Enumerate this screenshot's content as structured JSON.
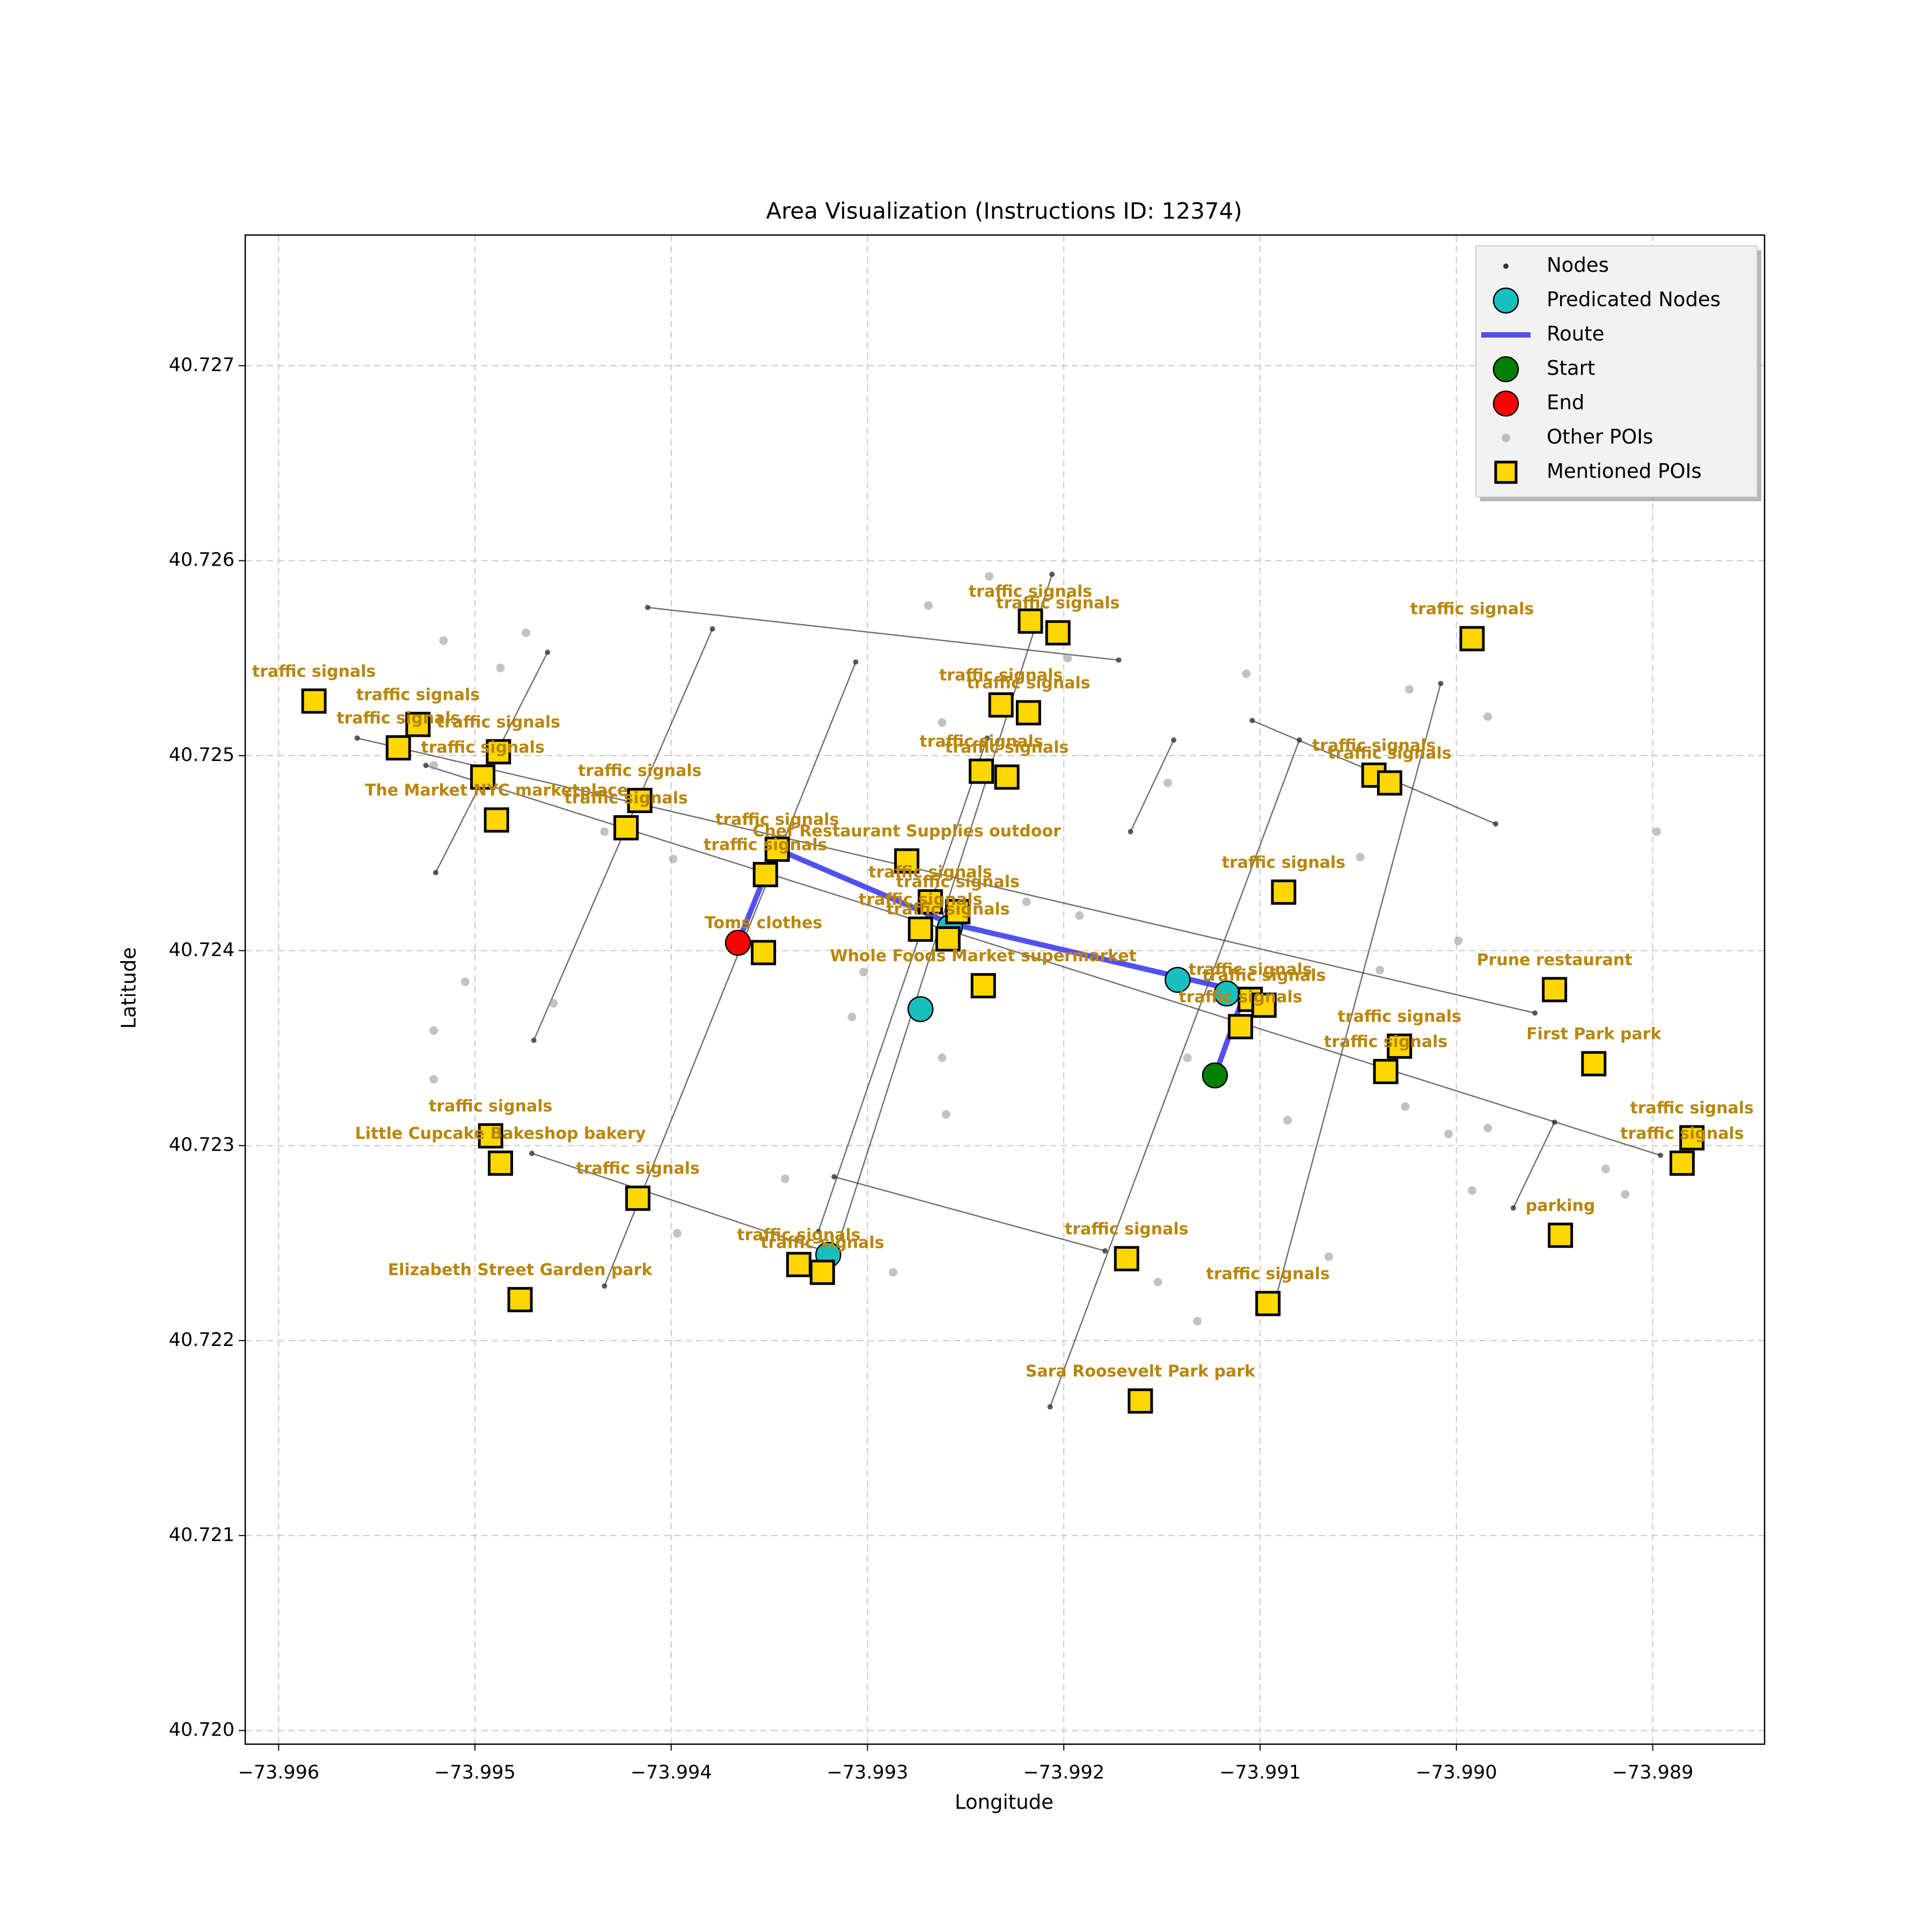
{
  "chart_data": {
    "type": "scatter",
    "title": "Area Visualization (Instructions ID: 12374)",
    "xlabel": "Longitude",
    "ylabel": "Latitude",
    "xlim": [
      -73.99617,
      -73.98843
    ],
    "ylim": [
      40.71993,
      40.72767
    ],
    "xticks": [
      {
        "value": -73.996,
        "label": "−73.996"
      },
      {
        "value": -73.995,
        "label": "−73.995"
      },
      {
        "value": -73.994,
        "label": "−73.994"
      },
      {
        "value": -73.993,
        "label": "−73.993"
      },
      {
        "value": -73.992,
        "label": "−73.992"
      },
      {
        "value": -73.991,
        "label": "−73.991"
      },
      {
        "value": -73.99,
        "label": "−73.990"
      },
      {
        "value": -73.989,
        "label": "−73.989"
      }
    ],
    "yticks": [
      {
        "value": 40.72,
        "label": "40.720"
      },
      40.721,
      40.722,
      40.723,
      40.724,
      40.725,
      40.726,
      40.727
    ],
    "grid": true,
    "legend": "upper right",
    "series": [
      {
        "name": "Nodes",
        "color": "#333333",
        "marker": "dot-line",
        "x": [
          -73.99412,
          -73.99172,
          null,
          -73.9956,
          -73.9896,
          null,
          -73.99525,
          -73.98896,
          null,
          -73.99104,
          -73.9898,
          null,
          -73.99471,
          -73.99322,
          null,
          -73.99317,
          -73.99179,
          null,
          -73.9952,
          -73.99463,
          null,
          -73.9947,
          -73.99379,
          null,
          -73.99434,
          -73.99306,
          null,
          -73.99325,
          -73.99239,
          null,
          -73.99317,
          -73.99206,
          null,
          -73.99207,
          -73.9908,
          null,
          -73.99093,
          -73.99008,
          null,
          -73.98971,
          -73.9895,
          null,
          -73.99166,
          -73.99144
        ],
        "y": [
          40.72576,
          40.72549,
          null,
          40.72509,
          40.72368,
          null,
          40.72495,
          40.72295,
          null,
          40.72518,
          40.72465,
          null,
          40.72296,
          40.72246,
          null,
          40.72284,
          40.72246,
          null,
          40.7244,
          40.72553,
          null,
          40.72354,
          40.72565,
          null,
          40.72228,
          40.72548,
          null,
          40.72256,
          40.72509,
          null,
          40.72243,
          40.72593,
          null,
          40.72166,
          40.72508,
          null,
          40.72218,
          40.72537,
          null,
          40.72268,
          40.72312,
          null,
          40.72461,
          40.72508
        ]
      },
      {
        "name": "Predicated Nodes",
        "color": "#17bfbf",
        "marker": "circle",
        "x": [
          -73.99142,
          -73.99117,
          -73.99273,
          -73.9932,
          -73.99258
        ],
        "y": [
          40.72385,
          40.72378,
          40.7237,
          40.72244,
          40.72412
        ]
      },
      {
        "name": "Route",
        "color": "#3333ee",
        "marker": "line",
        "x": [
          -73.99366,
          -73.99352,
          -73.99346,
          -73.99258,
          -73.99118,
          -73.99109,
          -73.99123
        ],
        "y": [
          40.72404,
          40.72439,
          40.72452,
          40.72414,
          40.72381,
          40.72375,
          40.72336
        ]
      },
      {
        "name": "Start",
        "color": "#008000",
        "marker": "circle",
        "x": [
          -73.99123
        ],
        "y": [
          40.72336
        ]
      },
      {
        "name": "End",
        "color": "#ff0000",
        "marker": "circle",
        "x": [
          -73.99366
        ],
        "y": [
          40.72404
        ]
      },
      {
        "name": "Other POIs",
        "color": "#999999",
        "marker": "gray-dot",
        "x": [
          -73.99516,
          -73.99474,
          -73.99487,
          -73.99521,
          -73.99434,
          -73.99399,
          -73.99505,
          -73.99521,
          -73.99521,
          -73.9946,
          -73.99269,
          -73.99238,
          -73.99198,
          -73.99262,
          -73.99219,
          -73.99192,
          -73.99302,
          -73.99308,
          -73.99262,
          -73.9926,
          -73.99147,
          -73.99107,
          -73.99024,
          -73.98984,
          -73.99049,
          -73.99039,
          -73.98999,
          -73.98898,
          -73.99086,
          -73.99026,
          -73.99004,
          -73.98984,
          -73.98924,
          -73.98914,
          -73.98992,
          -73.99065,
          -73.99152,
          -73.99132,
          -73.99342,
          -73.99397,
          -73.99287,
          -73.99137
        ],
        "y": [
          40.72559,
          40.72563,
          40.72545,
          40.72495,
          40.72461,
          40.72447,
          40.72384,
          40.72359,
          40.72334,
          40.72373,
          40.72577,
          40.72592,
          40.7255,
          40.72517,
          40.72425,
          40.72418,
          40.72389,
          40.72366,
          40.72345,
          40.72316,
          40.72486,
          40.72542,
          40.72534,
          40.7252,
          40.72448,
          40.7239,
          40.72405,
          40.72461,
          40.72313,
          40.7232,
          40.72306,
          40.72309,
          40.72288,
          40.72275,
          40.72277,
          40.72243,
          40.7223,
          40.7221,
          40.72283,
          40.72255,
          40.72235,
          40.72345
        ]
      },
      {
        "name": "Mentioned POIs",
        "color": "#ffd700",
        "marker": "square",
        "x": [
          -73.99582,
          -73.99529,
          -73.99539,
          -73.99488,
          -73.99496,
          -73.99489,
          -73.99416,
          -73.99423,
          -73.99346,
          -73.99352,
          -73.9928,
          -73.99353,
          -73.99217,
          -73.99203,
          -73.99232,
          -73.99218,
          -73.99242,
          -73.99229,
          -73.99268,
          -73.99254,
          -73.99273,
          -73.99259,
          -73.99241,
          -73.98992,
          -73.99042,
          -73.99034,
          -73.99088,
          -73.9895,
          -73.99105,
          -73.99098,
          -73.9911,
          -73.99029,
          -73.99036,
          -73.9893,
          -73.9888,
          -73.98885,
          -73.98947,
          -73.99492,
          -73.99487,
          -73.99417,
          -73.99335,
          -73.99323,
          -73.99477,
          -73.99168,
          -73.99096,
          -73.99161
        ],
        "y": [
          40.72528,
          40.72516,
          40.72504,
          40.72502,
          40.72489,
          40.72467,
          40.72477,
          40.72463,
          40.72452,
          40.72439,
          40.72446,
          40.72399,
          40.72569,
          40.72563,
          40.72526,
          40.72522,
          40.72492,
          40.72489,
          40.72425,
          40.7242,
          40.72411,
          40.72406,
          40.72382,
          40.7256,
          40.7249,
          40.72486,
          40.7243,
          40.7238,
          40.72375,
          40.72372,
          40.72361,
          40.72351,
          40.72338,
          40.72342,
          40.72304,
          40.72291,
          40.72254,
          40.72305,
          40.72291,
          40.72273,
          40.72239,
          40.72235,
          40.72221,
          40.72242,
          40.72219,
          40.72169
        ],
        "labels": [
          "traffic signals",
          "traffic signals",
          "traffic signals",
          "traffic signals",
          "traffic signals",
          "The Market NYC    marketplace",
          "traffic signals",
          "traffic signals",
          "traffic signals",
          "traffic signals",
          "Chef Restaurant Supplies    outdoor",
          "Toms    clothes",
          "traffic signals",
          "traffic signals",
          "traffic signals",
          "traffic signals",
          "traffic signals",
          "traffic signals",
          "traffic signals",
          "traffic signals",
          "traffic signals",
          "traffic signals",
          "Whole Foods Market    supermarket",
          "traffic signals",
          "traffic signals",
          "traffic signals",
          "traffic signals",
          "Prune restaurant",
          "traffic signals",
          "traffic signals",
          "traffic signals",
          "traffic signals",
          "traffic signals",
          "First Park    park",
          "traffic signals",
          "traffic signals",
          "parking",
          "traffic signals",
          "Little Cupcake Bakeshop    bakery",
          "traffic signals",
          "traffic signals",
          "traffic signals",
          "Elizabeth Street Garden    park",
          "traffic signals",
          "traffic signals",
          "Sara Roosevelt Park    park"
        ]
      }
    ]
  }
}
